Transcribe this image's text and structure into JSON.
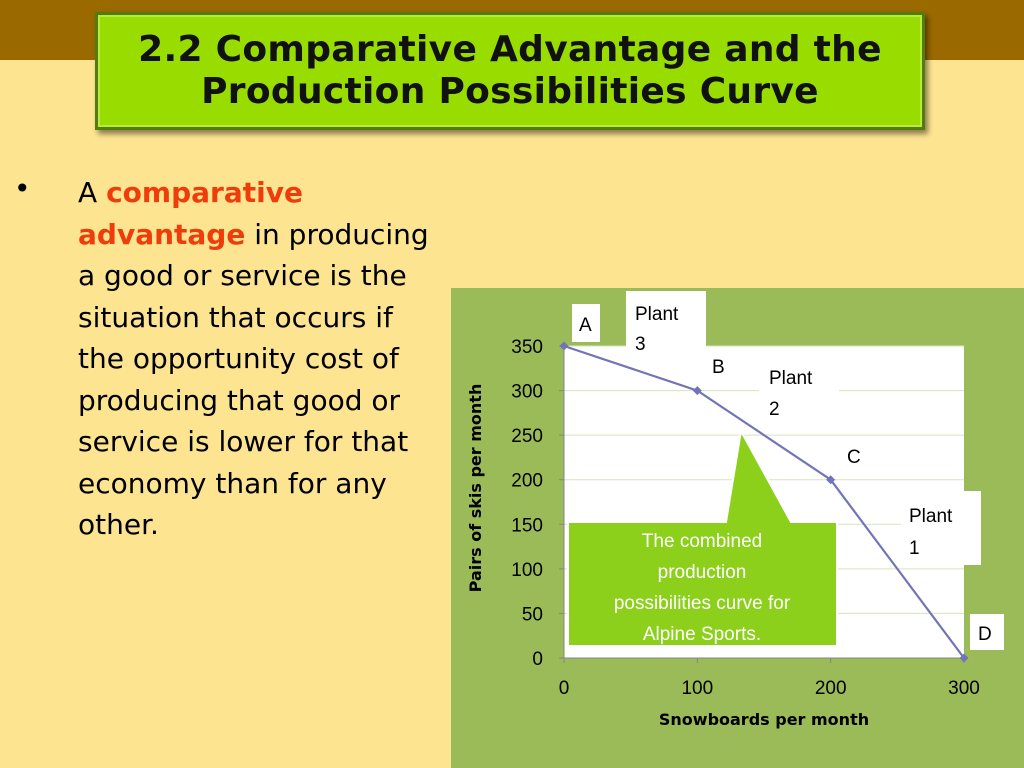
{
  "slide": {
    "title_line1": "2.2 Comparative Advantage and the",
    "title_line2": "Production Possibilities Curve",
    "bullet_marker": "•",
    "bullet": {
      "part1": "A ",
      "highlight": "comparative advantage",
      "part2": " in producing a good or service is the situation that occurs if the opportunity cost of producing that good or service is lower for that economy than for any other."
    },
    "highlight_color": "#ee3c0a",
    "background_color": "#fde491",
    "title_box_color": "#99dd00"
  },
  "chart_data": {
    "type": "line",
    "xlabel": "Snowboards per month",
    "ylabel": "Pairs of skis per month",
    "x": [
      0,
      100,
      200,
      300
    ],
    "series": [
      {
        "values": [
          350,
          300,
          200,
          0
        ]
      }
    ],
    "point_labels": [
      "A",
      "B",
      "C",
      "D"
    ],
    "xlim": [
      0,
      300
    ],
    "ylim": [
      0,
      350
    ],
    "x_ticks": [
      "0",
      "100",
      "200",
      "300"
    ],
    "y_ticks": [
      "0",
      "50",
      "100",
      "150",
      "200",
      "250",
      "300",
      "350"
    ],
    "grid": true,
    "plant_labels": [
      {
        "line1": "Plant",
        "line2": "3"
      },
      {
        "line1": "Plant",
        "line2": "2"
      },
      {
        "line1": "Plant",
        "line2": "1"
      }
    ],
    "callout": {
      "lines": [
        "The combined",
        "production",
        "possibilities curve for",
        "Alpine Sports."
      ]
    },
    "panel_color": "#9bbb59",
    "line_color": "#7373b8",
    "callout_color": "#8cd01c"
  }
}
